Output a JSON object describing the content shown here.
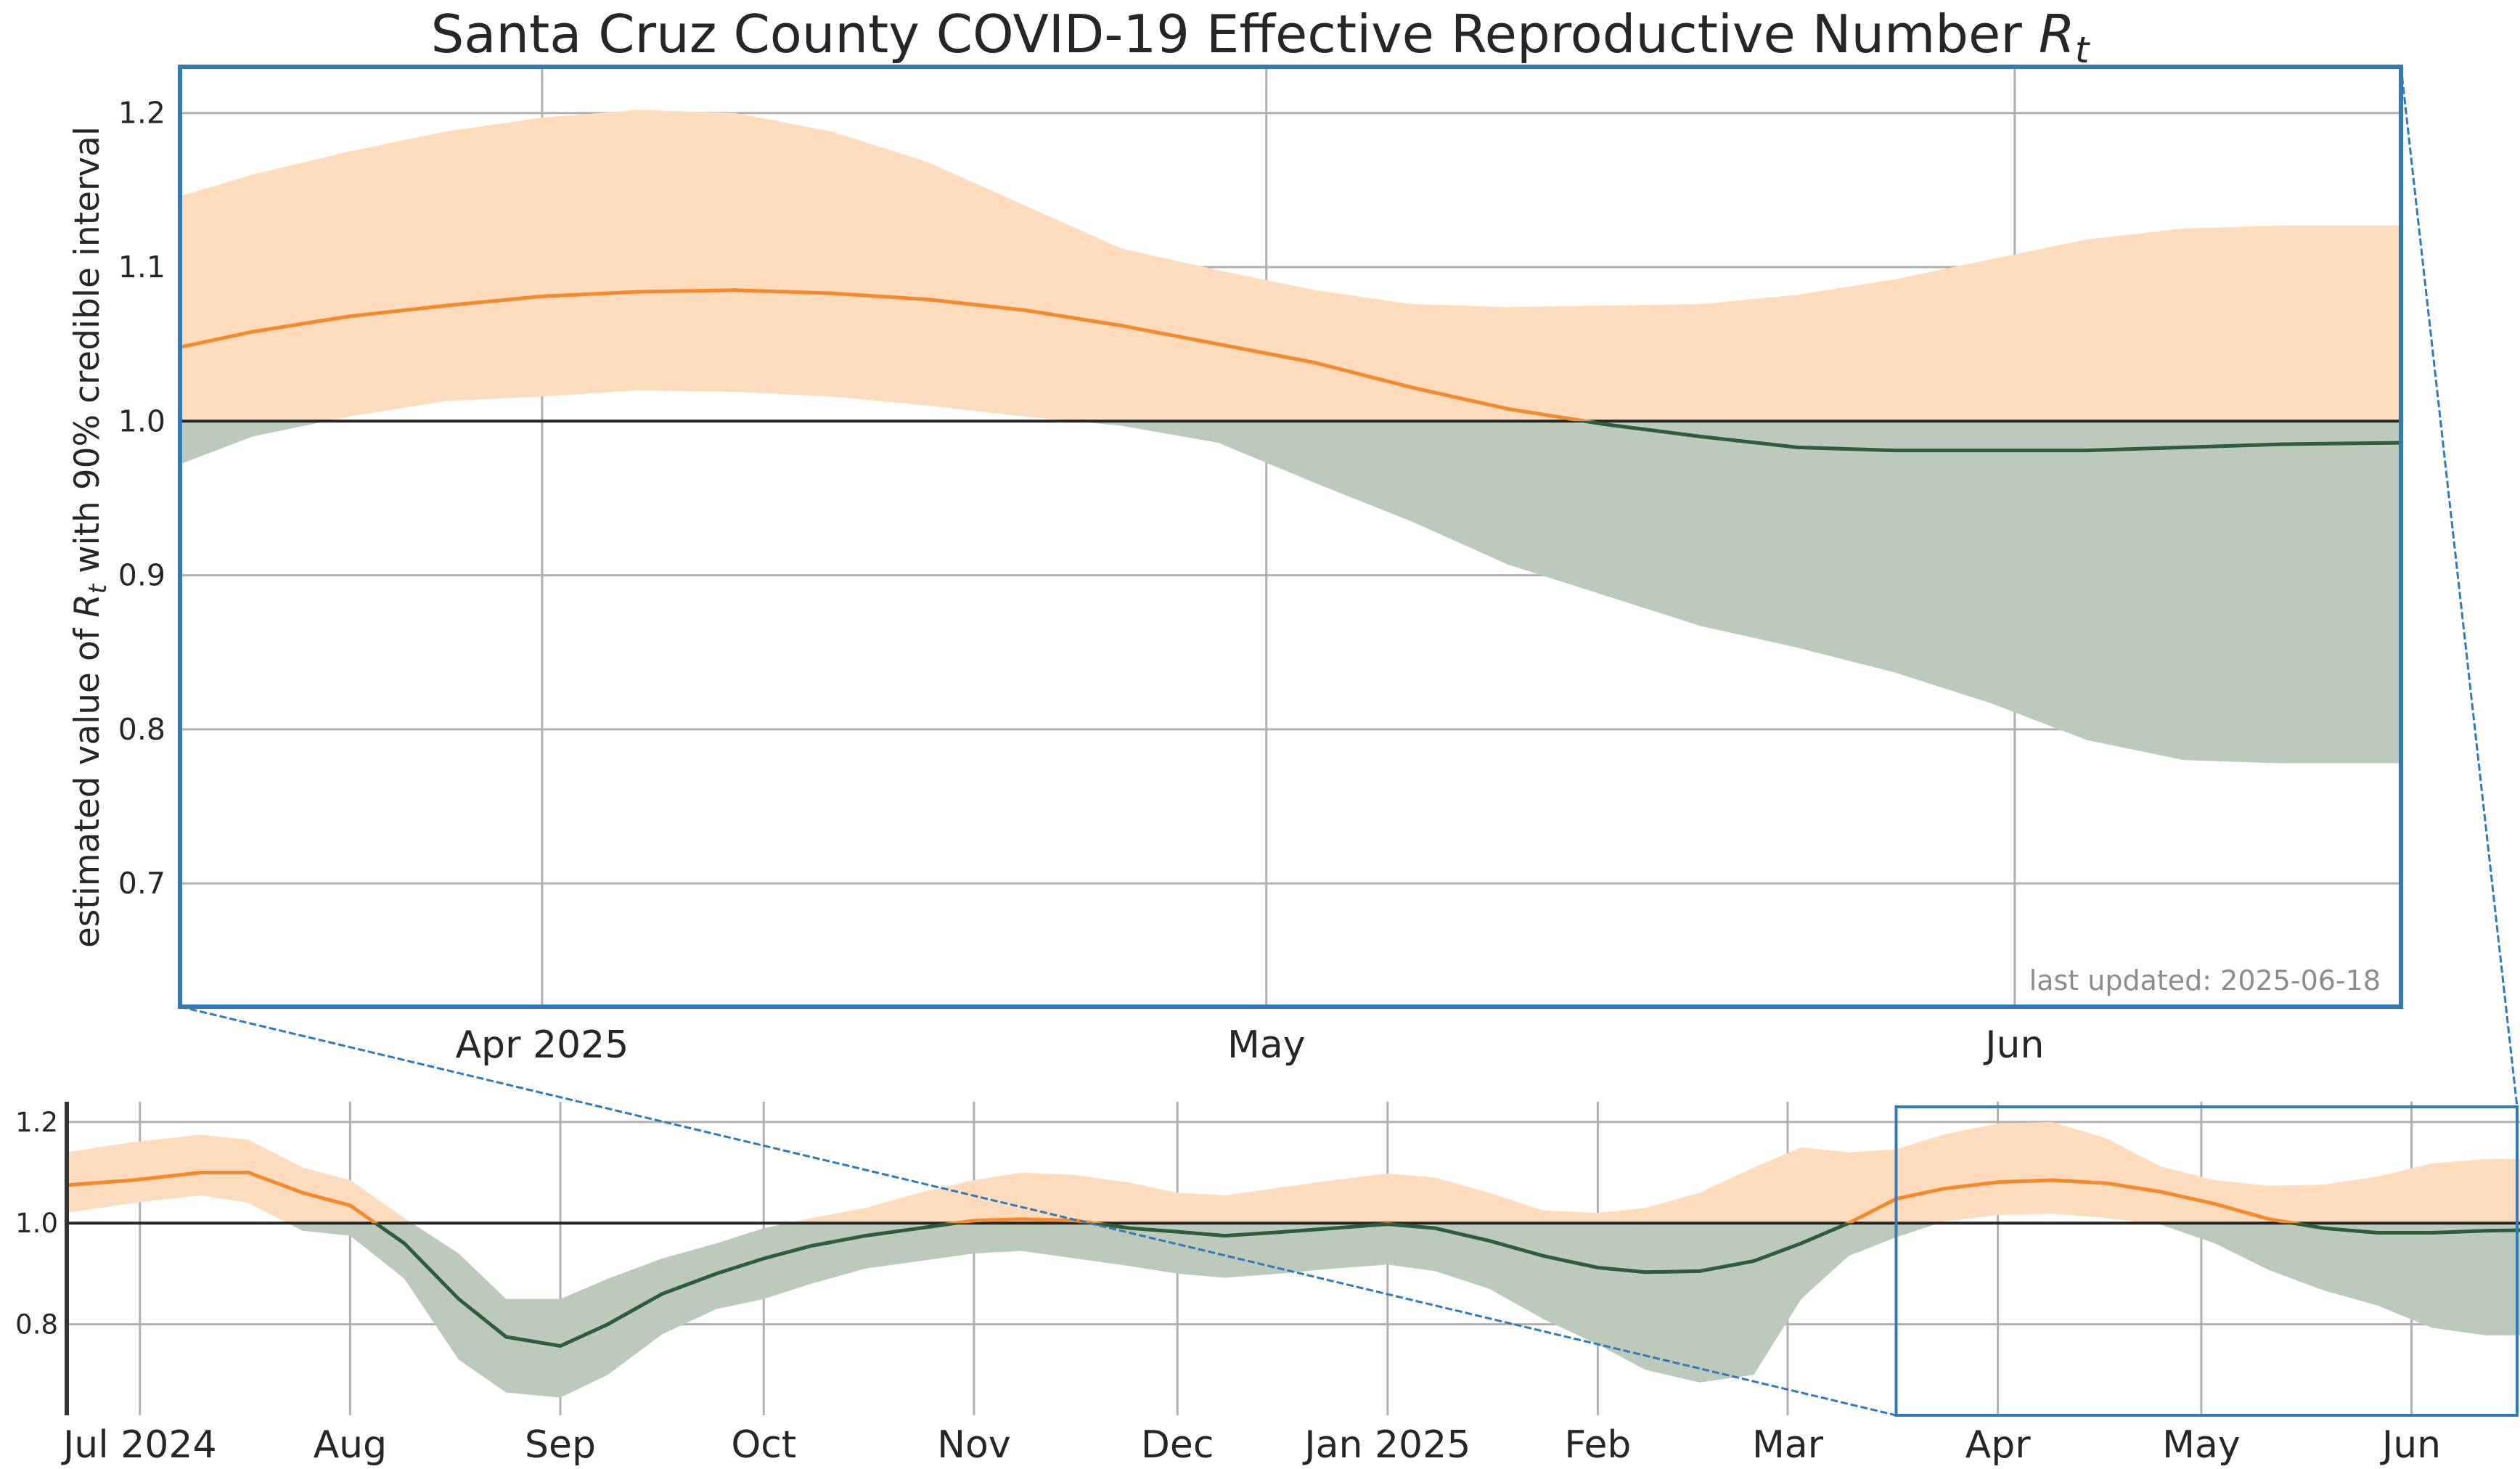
{
  "title": "Santa Cruz County COVID-19 Effective Reproductive Number",
  "title_symbol": "R",
  "title_subscript": "t",
  "ylabel_prefix": "estimated value of ",
  "ylabel_symbol": "R",
  "ylabel_subscript": "t",
  "ylabel_suffix": " with 90% credible interval",
  "last_updated": "last updated: 2025-06-18",
  "colors": {
    "above_band": "#ffdcbe",
    "below_band": "#bccabb",
    "above_line": "#f58a2c",
    "below_line": "#2d5e3a",
    "frame": "#2f7ab7",
    "threshold": "#262626",
    "grid": "#b0b0b0",
    "overview_axis": "#333333"
  },
  "chart_data": [
    {
      "name": "main",
      "type": "line",
      "x_unit": "date",
      "xlim": [
        "2025-03-17",
        "2025-06-17"
      ],
      "ylim": [
        0.62,
        1.23
      ],
      "grid": true,
      "threshold": 1.0,
      "yticks": [
        0.7,
        0.8,
        0.9,
        1.0,
        1.1,
        1.2
      ],
      "ytick_labels": [
        "0.7",
        "0.8",
        "0.9",
        "1.0",
        "1.1",
        "1.2"
      ],
      "xticks": [
        {
          "date": "2025-04-01",
          "label": "Apr 2025"
        },
        {
          "date": "2025-05-01",
          "label": "May"
        },
        {
          "date": "2025-06-01",
          "label": "Jun"
        }
      ],
      "series": [
        {
          "x": [
            "2025-03-17",
            "2025-03-20",
            "2025-03-24",
            "2025-03-28",
            "2025-04-01",
            "2025-04-05",
            "2025-04-09",
            "2025-04-13",
            "2025-04-17",
            "2025-04-21",
            "2025-04-25",
            "2025-04-29",
            "2025-05-03",
            "2025-05-07",
            "2025-05-11",
            "2025-05-15",
            "2025-05-19",
            "2025-05-23",
            "2025-05-27",
            "2025-05-31",
            "2025-06-04",
            "2025-06-08",
            "2025-06-12",
            "2025-06-17"
          ],
          "median": [
            1.048,
            1.058,
            1.068,
            1.075,
            1.081,
            1.084,
            1.085,
            1.083,
            1.079,
            1.072,
            1.062,
            1.05,
            1.038,
            1.022,
            1.008,
            0.998,
            0.99,
            0.983,
            0.981,
            0.981,
            0.981,
            0.983,
            0.985,
            0.986
          ],
          "lower": [
            0.972,
            0.99,
            1.003,
            1.013,
            1.016,
            1.02,
            1.019,
            1.016,
            1.01,
            1.003,
            0.997,
            0.986,
            0.96,
            0.935,
            0.907,
            0.887,
            0.867,
            0.853,
            0.837,
            0.817,
            0.793,
            0.78,
            0.778,
            0.778
          ],
          "upper": [
            1.146,
            1.16,
            1.175,
            1.188,
            1.197,
            1.202,
            1.2,
            1.188,
            1.168,
            1.14,
            1.112,
            1.098,
            1.085,
            1.076,
            1.074,
            1.075,
            1.076,
            1.082,
            1.092,
            1.105,
            1.118,
            1.125,
            1.127,
            1.127
          ]
        }
      ]
    },
    {
      "name": "overview",
      "type": "line",
      "x_unit": "date",
      "xlim": [
        "2024-06-20",
        "2025-06-17"
      ],
      "ylim": [
        0.62,
        1.24
      ],
      "grid": true,
      "threshold": 1.0,
      "yticks": [
        0.8,
        1.0,
        1.2
      ],
      "ytick_labels": [
        "0.8",
        "1.0",
        "1.2"
      ],
      "xticks": [
        {
          "date": "2024-07-01",
          "label": "Jul 2024"
        },
        {
          "date": "2024-08-01",
          "label": "Aug"
        },
        {
          "date": "2024-09-01",
          "label": "Sep"
        },
        {
          "date": "2024-10-01",
          "label": "Oct"
        },
        {
          "date": "2024-11-01",
          "label": "Nov"
        },
        {
          "date": "2024-12-01",
          "label": "Dec"
        },
        {
          "date": "2025-01-01",
          "label": "Jan 2025"
        },
        {
          "date": "2025-02-01",
          "label": "Feb"
        },
        {
          "date": "2025-03-01",
          "label": "Mar"
        },
        {
          "date": "2025-04-01",
          "label": "Apr"
        },
        {
          "date": "2025-05-01",
          "label": "May"
        },
        {
          "date": "2025-06-01",
          "label": "Jun"
        }
      ],
      "inset_range": {
        "x": [
          "2025-03-17",
          "2025-06-17"
        ],
        "y": [
          0.62,
          1.23
        ]
      },
      "series": [
        {
          "x": [
            "2024-06-20",
            "2024-06-30",
            "2024-07-10",
            "2024-07-17",
            "2024-07-25",
            "2024-08-01",
            "2024-08-09",
            "2024-08-17",
            "2024-08-24",
            "2024-09-01",
            "2024-09-08",
            "2024-09-16",
            "2024-09-24",
            "2024-10-01",
            "2024-10-08",
            "2024-10-16",
            "2024-10-24",
            "2024-11-01",
            "2024-11-08",
            "2024-11-16",
            "2024-11-24",
            "2024-12-01",
            "2024-12-08",
            "2024-12-16",
            "2024-12-24",
            "2025-01-01",
            "2025-01-08",
            "2025-01-16",
            "2025-01-24",
            "2025-02-01",
            "2025-02-08",
            "2025-02-16",
            "2025-02-24",
            "2025-03-03",
            "2025-03-10",
            "2025-03-17",
            "2025-03-24",
            "2025-04-01",
            "2025-04-09",
            "2025-04-17",
            "2025-04-25",
            "2025-05-03",
            "2025-05-11",
            "2025-05-19",
            "2025-05-27",
            "2025-06-04",
            "2025-06-12",
            "2025-06-17"
          ],
          "median": [
            1.075,
            1.085,
            1.1,
            1.1,
            1.06,
            1.035,
            0.96,
            0.85,
            0.775,
            0.757,
            0.8,
            0.86,
            0.9,
            0.93,
            0.955,
            0.975,
            0.99,
            1.005,
            1.008,
            1.005,
            0.99,
            0.983,
            0.975,
            0.982,
            0.99,
            0.998,
            0.99,
            0.965,
            0.935,
            0.912,
            0.903,
            0.905,
            0.925,
            0.96,
            1.0,
            1.048,
            1.068,
            1.081,
            1.085,
            1.079,
            1.062,
            1.038,
            1.008,
            0.99,
            0.981,
            0.981,
            0.985,
            0.986
          ],
          "lower": [
            1.02,
            1.04,
            1.055,
            1.04,
            0.985,
            0.975,
            0.89,
            0.73,
            0.665,
            0.655,
            0.7,
            0.78,
            0.83,
            0.85,
            0.88,
            0.91,
            0.925,
            0.94,
            0.945,
            0.93,
            0.915,
            0.9,
            0.892,
            0.9,
            0.91,
            0.918,
            0.905,
            0.87,
            0.81,
            0.76,
            0.71,
            0.685,
            0.7,
            0.85,
            0.935,
            0.972,
            1.003,
            1.016,
            1.019,
            1.01,
            0.997,
            0.96,
            0.907,
            0.867,
            0.837,
            0.793,
            0.778,
            0.778
          ],
          "upper": [
            1.14,
            1.16,
            1.175,
            1.165,
            1.11,
            1.085,
            1.01,
            0.94,
            0.85,
            0.85,
            0.89,
            0.93,
            0.96,
            0.99,
            1.01,
            1.03,
            1.06,
            1.085,
            1.1,
            1.095,
            1.08,
            1.06,
            1.055,
            1.07,
            1.085,
            1.098,
            1.09,
            1.06,
            1.025,
            1.02,
            1.03,
            1.06,
            1.11,
            1.15,
            1.14,
            1.146,
            1.175,
            1.197,
            1.2,
            1.168,
            1.112,
            1.085,
            1.074,
            1.076,
            1.092,
            1.118,
            1.127,
            1.127
          ]
        }
      ]
    }
  ]
}
